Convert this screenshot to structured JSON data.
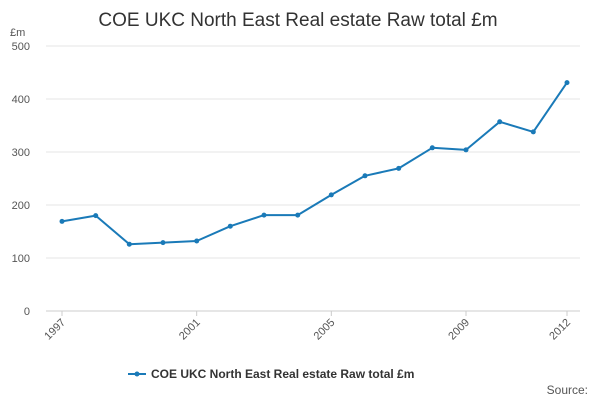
{
  "chart_data": {
    "type": "line",
    "title": "COE UKC North East Real estate Raw total £m",
    "ylabel": "£m",
    "xlabel": "",
    "x": [
      1997,
      1998,
      1999,
      2000,
      2001,
      2002,
      2003,
      2004,
      2005,
      2006,
      2007,
      2008,
      2009,
      2010,
      2011,
      2012
    ],
    "xticks": [
      1997,
      2001,
      2005,
      2009,
      2012
    ],
    "yticks": [
      0,
      100,
      200,
      300,
      400,
      500
    ],
    "ylim": [
      0,
      500
    ],
    "grid": true,
    "legend_position": "bottom",
    "series": [
      {
        "name": "COE UKC North East Real estate Raw total £m",
        "color": "#1a7ab8",
        "values": [
          169,
          180,
          126,
          129,
          132,
          160,
          181,
          181,
          219,
          255,
          269,
          308,
          304,
          357,
          338,
          431
        ]
      }
    ],
    "source": "Source:"
  }
}
